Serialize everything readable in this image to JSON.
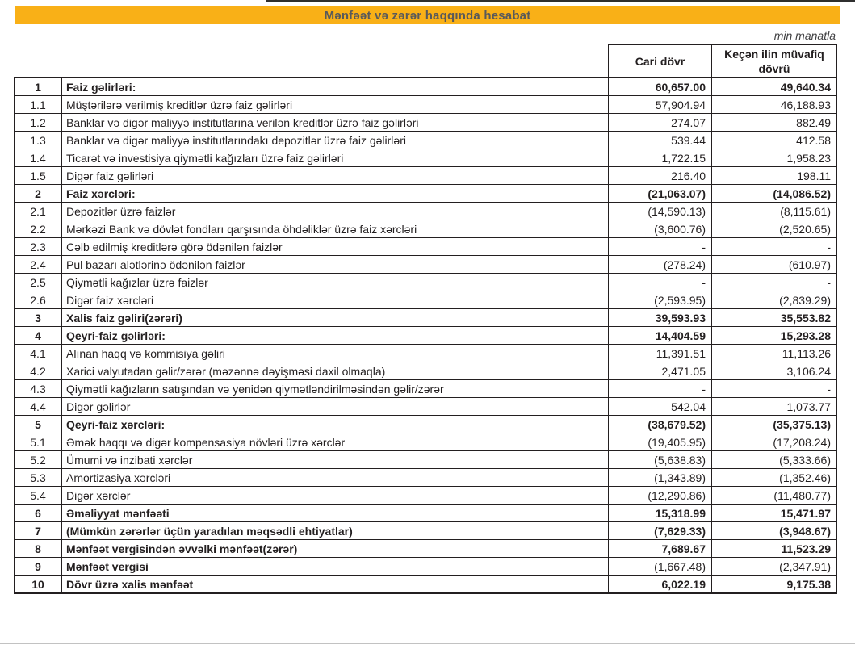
{
  "header": {
    "title": "Mənfəət və zərər haqqında hesabat",
    "unit_note": "min manatla"
  },
  "colors": {
    "banner_bg": "#f9b017",
    "banner_text": "#58595b",
    "text": "#231f20",
    "border": "#231f20"
  },
  "table": {
    "columns": [
      "Cari dövr",
      "Keçən ilin müvafiq dövrü"
    ],
    "rows": [
      {
        "no": "1",
        "label": "Faiz gəlirləri:",
        "current": "60,657.00",
        "previous": "49,640.34",
        "bold": true,
        "values_bold": true
      },
      {
        "no": "1.1",
        "label": "Müştərilərə verilmiş kreditlər üzrə faiz gəlirləri",
        "current": "57,904.94",
        "previous": "46,188.93",
        "bold": false,
        "values_bold": false
      },
      {
        "no": "1.2",
        "label": "Banklar və digər maliyyə institutlarına verilən kreditlər üzrə faiz gəlirləri",
        "current": "274.07",
        "previous": "882.49",
        "bold": false,
        "values_bold": false
      },
      {
        "no": "1.3",
        "label": "Banklar və digər maliyyə institutlarındakı depozitlər üzrə faiz gəlirləri",
        "current": "539.44",
        "previous": "412.58",
        "bold": false,
        "values_bold": false
      },
      {
        "no": "1.4",
        "label": "Ticarət və investisiya qiymətli kağızları üzrə faiz gəlirləri",
        "current": "1,722.15",
        "previous": "1,958.23",
        "bold": false,
        "values_bold": false
      },
      {
        "no": "1.5",
        "label": "Digər faiz gəlirləri",
        "current": "216.40",
        "previous": "198.11",
        "bold": false,
        "values_bold": false
      },
      {
        "no": "2",
        "label": "Faiz xərcləri:",
        "current": "(21,063.07)",
        "previous": "(14,086.52)",
        "bold": true,
        "values_bold": true
      },
      {
        "no": "2.1",
        "label": "Depozitlər üzrə faizlər",
        "current": "(14,590.13)",
        "previous": "(8,115.61)",
        "bold": false,
        "values_bold": false
      },
      {
        "no": "2.2",
        "label": "Mərkəzi Bank və dövlət fondları qarşısında öhdəliklər üzrə faiz xərcləri",
        "current": "(3,600.76)",
        "previous": "(2,520.65)",
        "bold": false,
        "values_bold": false
      },
      {
        "no": "2.3",
        "label": "Cəlb edilmiş kreditlərə görə ödənilən faizlər",
        "current": "-",
        "previous": "-",
        "bold": false,
        "values_bold": false
      },
      {
        "no": "2.4",
        "label": "Pul bazarı alətlərinə ödənilən faizlər",
        "current": "(278.24)",
        "previous": "(610.97)",
        "bold": false,
        "values_bold": false
      },
      {
        "no": "2.5",
        "label": "Qiymətli kağızlar üzrə faizlər",
        "current": "-",
        "previous": "-",
        "bold": false,
        "values_bold": false
      },
      {
        "no": "2.6",
        "label": "Digər faiz xərcləri",
        "current": "(2,593.95)",
        "previous": "(2,839.29)",
        "bold": false,
        "values_bold": false
      },
      {
        "no": "3",
        "label": "Xalis faiz gəliri(zərəri)",
        "current": "39,593.93",
        "previous": "35,553.82",
        "bold": true,
        "values_bold": true
      },
      {
        "no": "4",
        "label": "Qeyri-faiz gəlirləri:",
        "current": "14,404.59",
        "previous": "15,293.28",
        "bold": true,
        "values_bold": true
      },
      {
        "no": "4.1",
        "label": "Alınan haqq və kommisiya gəliri",
        "current": "11,391.51",
        "previous": "11,113.26",
        "bold": false,
        "values_bold": false
      },
      {
        "no": "4.2",
        "label": "Xarici valyutadan gəlir/zərər (məzənnə dəyişməsi daxil olmaqla)",
        "current": "2,471.05",
        "previous": "3,106.24",
        "bold": false,
        "values_bold": false
      },
      {
        "no": "4.3",
        "label": "Qiymətli kağızların satışından və yenidən qiymətləndirilməsindən gəlir/zərər",
        "current": "-",
        "previous": "-",
        "bold": false,
        "values_bold": false
      },
      {
        "no": "4.4",
        "label": "Digər gəlirlər",
        "current": "542.04",
        "previous": "1,073.77",
        "bold": false,
        "values_bold": false
      },
      {
        "no": "5",
        "label": "Qeyri-faiz xərcləri:",
        "current": "(38,679.52)",
        "previous": "(35,375.13)",
        "bold": true,
        "values_bold": true
      },
      {
        "no": "5.1",
        "label": "Əmək haqqı və digər kompensasiya növləri üzrə xərclər",
        "current": "(19,405.95)",
        "previous": "(17,208.24)",
        "bold": false,
        "values_bold": false
      },
      {
        "no": "5.2",
        "label": "Ümumi və inzibati xərclər",
        "current": "(5,638.83)",
        "previous": "(5,333.66)",
        "bold": false,
        "values_bold": false
      },
      {
        "no": "5.3",
        "label": "Amortizasiya xərcləri",
        "current": "(1,343.89)",
        "previous": "(1,352.46)",
        "bold": false,
        "values_bold": false
      },
      {
        "no": "5.4",
        "label": "Digər xərclər",
        "current": "(12,290.86)",
        "previous": "(11,480.77)",
        "bold": false,
        "values_bold": false
      },
      {
        "no": "6",
        "label": "Əməliyyat mənfəəti",
        "current": "15,318.99",
        "previous": "15,471.97",
        "bold": true,
        "values_bold": true
      },
      {
        "no": "7",
        "label": "(Mümkün zərərlər üçün yaradılan məqsədli ehtiyatlar)",
        "current": "(7,629.33)",
        "previous": "(3,948.67)",
        "bold": true,
        "values_bold": true
      },
      {
        "no": "8",
        "label": "Mənfəət vergisindən əvvəlki mənfəət(zərər)",
        "current": "7,689.67",
        "previous": "11,523.29",
        "bold": true,
        "values_bold": true
      },
      {
        "no": "9",
        "label": "Mənfəət vergisi",
        "current": "(1,667.48)",
        "previous": "(2,347.91)",
        "bold": true,
        "values_bold": false
      },
      {
        "no": "10",
        "label": "Dövr üzrə xalis mənfəət",
        "current": "6,022.19",
        "previous": "9,175.38",
        "bold": true,
        "values_bold": true
      }
    ]
  }
}
